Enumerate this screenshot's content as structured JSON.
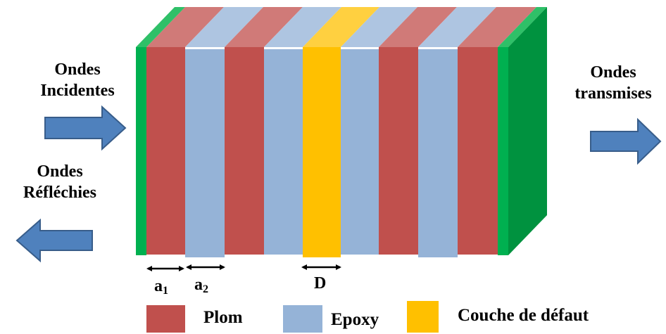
{
  "labels": {
    "incident_line1": "Ondes",
    "incident_line2": "Incidentes",
    "reflected_line1": "Ondes",
    "reflected_line2": "Réfléchies",
    "transmitted_line1": "Ondes",
    "transmitted_line2": "transmises"
  },
  "dimensions": {
    "a1_letter": "a",
    "a1_index": "1",
    "a2_letter": "a",
    "a2_index": "2",
    "defect_width": "D"
  },
  "layers": [
    "Plom",
    "Epoxy",
    "Plom",
    "Epoxy",
    "Couche de défaut",
    "Epoxy",
    "Plom",
    "Epoxy",
    "Plom"
  ],
  "legend": [
    {
      "label": "Plom",
      "color": "#c0504d"
    },
    {
      "label": "Epoxy",
      "color": "#95b3d7"
    },
    {
      "label": "Couche de défaut",
      "color": "#ffc000"
    }
  ],
  "colors": {
    "plom": "#c0504d",
    "plom_top": "#d07a78",
    "epoxy": "#95b3d7",
    "epoxy_top": "#aec5e1",
    "defect": "#ffc000",
    "defect_top": "#ffd040",
    "electrode_front": "#00b050",
    "electrode_side": "#00923f",
    "arrow_fill": "#4f81bd",
    "arrow_stroke": "#385d8a"
  },
  "icons": {
    "incident_arrow": "arrow-right-icon",
    "reflected_arrow": "arrow-left-icon",
    "transmitted_arrow": "arrow-right-icon",
    "dimension_arrow": "double-arrow-icon"
  }
}
